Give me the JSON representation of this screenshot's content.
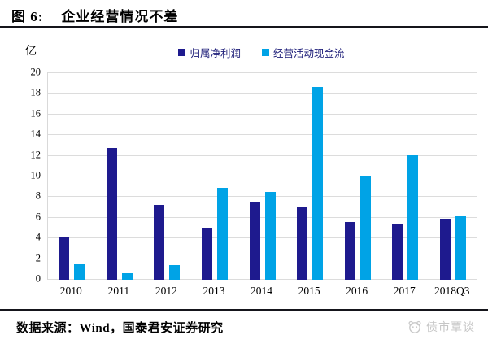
{
  "header": {
    "figure_label": "图 6:",
    "title": "企业经营情况不差"
  },
  "chart_data": {
    "type": "bar",
    "title": "企业经营情况不差",
    "unit_label": "亿",
    "categories": [
      "2010",
      "2011",
      "2012",
      "2013",
      "2014",
      "2015",
      "2016",
      "2017",
      "2018Q3"
    ],
    "series": [
      {
        "name": "归属净利润",
        "color": "#1e1a8e",
        "values": [
          4.1,
          12.7,
          7.2,
          5.0,
          7.5,
          7.0,
          5.6,
          5.3,
          5.9
        ]
      },
      {
        "name": "经营活动现金流",
        "color": "#00a3e6",
        "values": [
          1.5,
          0.6,
          1.4,
          8.9,
          8.5,
          18.6,
          10.0,
          12.0,
          6.1
        ]
      }
    ],
    "ylim": [
      0,
      20
    ],
    "yticks": [
      0,
      2,
      4,
      6,
      8,
      10,
      12,
      14,
      16,
      18,
      20
    ],
    "grid": true,
    "gridline_color": "#dcdcdc",
    "legend_position": "top",
    "legend_text_color": "#1c1c78"
  },
  "footer": {
    "source": "数据来源：Wind，国泰君安证券研究",
    "watermark": "债市覃谈"
  }
}
